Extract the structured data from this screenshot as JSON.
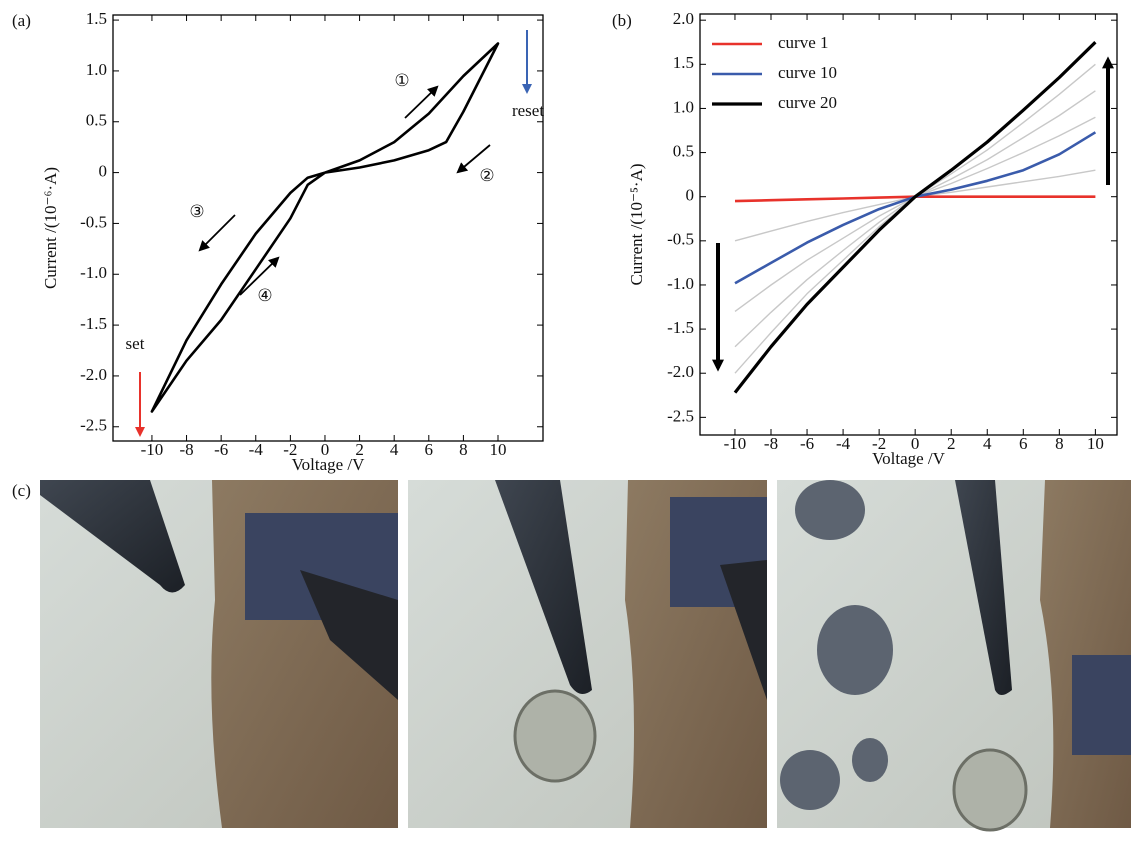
{
  "chart_data": [
    {
      "type": "line",
      "panel_label": "(a)",
      "x_label": "Voltage /V",
      "y_label": "Current /(10⁻⁶·A)",
      "x": [
        0,
        2,
        4,
        6,
        8,
        10,
        8,
        7,
        6,
        4,
        2,
        0,
        -1,
        -2,
        -4,
        -6,
        -8,
        -10,
        -8,
        -6,
        -4,
        -2,
        -1,
        0
      ],
      "series": [
        {
          "color": "#000000",
          "values": [
            0,
            0.12,
            0.3,
            0.58,
            0.95,
            1.27,
            0.6,
            0.3,
            0.22,
            0.12,
            0.05,
            0,
            -0.05,
            -0.2,
            -0.6,
            -1.1,
            -1.65,
            -2.35,
            -1.85,
            -1.45,
            -0.95,
            -0.45,
            -0.12,
            0
          ]
        }
      ],
      "xlim": [
        -12.25,
        12.6
      ],
      "ylim": [
        -2.64,
        1.55
      ],
      "xticks": [
        -10,
        -8,
        -6,
        -4,
        -2,
        0,
        2,
        4,
        6,
        8,
        10
      ],
      "yticks": [
        1.5,
        {
          "value": 1.0,
          "label": "1.0"
        },
        0.5,
        0,
        -0.5,
        {
          "value": -1.0,
          "label": "-1.0"
        },
        -1.5,
        {
          "value": -2.0,
          "label": "-2.0"
        },
        -2.5
      ],
      "annotations": [
        "①",
        "②",
        "③",
        "④",
        "set",
        "reset"
      ]
    },
    {
      "type": "line",
      "panel_label": "(b)",
      "x_label": "Voltage /V",
      "y_label": "Current /(10⁻⁵·A)",
      "x": [
        -10,
        -8,
        -6,
        -4,
        -2,
        0,
        2,
        4,
        6,
        8,
        10
      ],
      "series": [
        {
          "color": "#c8c8c8",
          "values": [
            -0.5,
            -0.39,
            -0.28,
            -0.18,
            -0.09,
            0,
            0.05,
            0.11,
            0.17,
            0.23,
            0.3
          ]
        },
        {
          "color": "#c8c8c8",
          "values": [
            -1.3,
            -1.0,
            -0.72,
            -0.47,
            -0.22,
            0,
            0.15,
            0.32,
            0.5,
            0.69,
            0.9
          ]
        },
        {
          "color": "#c8c8c8",
          "values": [
            -1.7,
            -1.31,
            -0.94,
            -0.61,
            -0.29,
            0,
            0.2,
            0.42,
            0.67,
            0.92,
            1.2
          ]
        },
        {
          "color": "#c8c8c8",
          "values": [
            -2.0,
            -1.54,
            -1.1,
            -0.72,
            -0.34,
            0,
            0.26,
            0.53,
            0.84,
            1.16,
            1.5
          ]
        },
        {
          "name": "curve 1",
          "color": "#e8322b",
          "values": [
            -0.05,
            -0.04,
            -0.03,
            -0.02,
            -0.01,
            0,
            0,
            0,
            0,
            0,
            0
          ]
        },
        {
          "name": "curve 10",
          "color": "#3a5bab",
          "values": [
            -0.98,
            -0.75,
            -0.52,
            -0.32,
            -0.14,
            0,
            0.08,
            0.18,
            0.3,
            0.48,
            0.73
          ]
        },
        {
          "name": "curve 20",
          "color": "#000000",
          "values": [
            -2.22,
            -1.7,
            -1.22,
            -0.8,
            -0.38,
            0,
            0.3,
            0.62,
            0.98,
            1.35,
            1.75
          ]
        }
      ],
      "xlim": [
        -11.94,
        11.2
      ],
      "ylim": [
        -2.7,
        2.07
      ],
      "xticks": [
        -10,
        -8,
        -6,
        -4,
        -2,
        0,
        2,
        4,
        6,
        8,
        10
      ],
      "yticks": [
        {
          "value": 2.0,
          "label": "2.0"
        },
        1.5,
        {
          "value": 1.0,
          "label": "1.0"
        },
        0.5,
        0,
        -0.5,
        {
          "value": -1.0,
          "label": "-1.0"
        },
        -1.5,
        {
          "value": -2.0,
          "label": "-2.0"
        },
        -2.5
      ],
      "legend": "upper left"
    }
  ],
  "panel_c": {
    "label": "(c)"
  }
}
